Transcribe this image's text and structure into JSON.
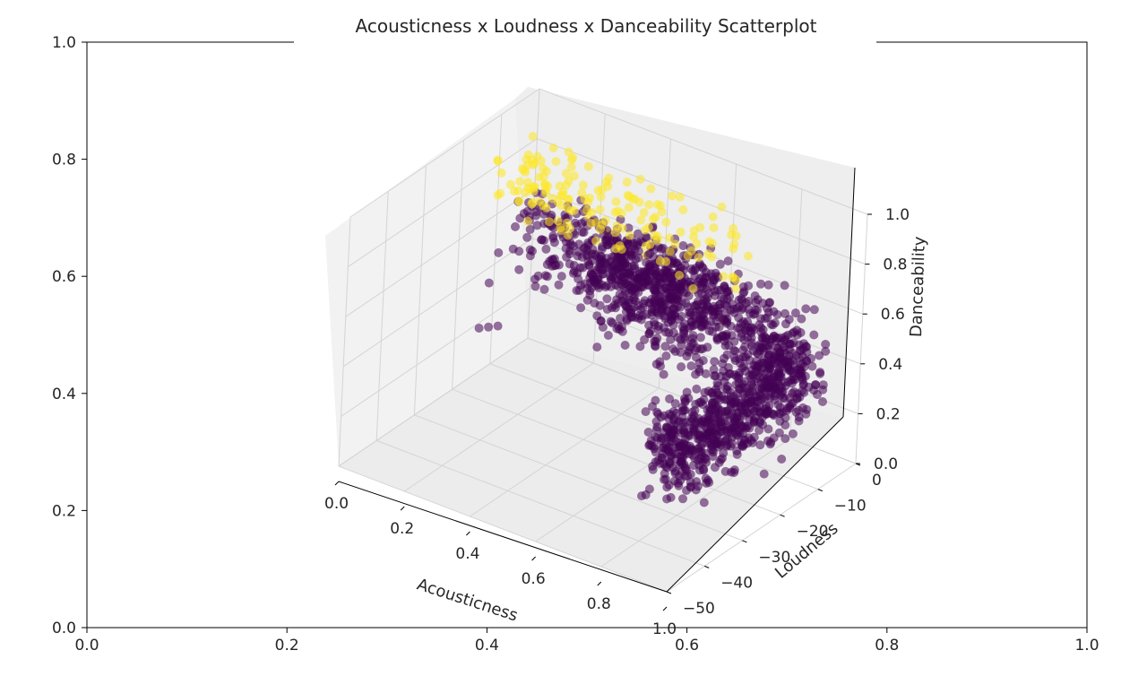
{
  "chart_data": {
    "type": "scatter",
    "title": "Acousticness x Loudness x Danceability Scatterplot",
    "projection": "3d",
    "colormap": "viridis",
    "colors": {
      "low": "#440154",
      "high": "#fde725",
      "pane": "#f2f2f2",
      "grid": "#d9d9d9",
      "axis": "#000000",
      "text": "#262626"
    },
    "background_axes": {
      "xlim": [
        0.0,
        1.0
      ],
      "ylim": [
        0.0,
        1.0
      ],
      "xticks": [
        "0.0",
        "0.2",
        "0.4",
        "0.6",
        "0.8",
        "1.0"
      ],
      "yticks": [
        "0.0",
        "0.2",
        "0.4",
        "0.6",
        "0.8",
        "1.0"
      ]
    },
    "xlabel": "Acousticness",
    "ylabel": "Loudness",
    "zlabel": "Danceability",
    "xlim": [
      0.0,
      1.0
    ],
    "ylim": [
      -50,
      0
    ],
    "zlim": [
      0.0,
      1.0
    ],
    "xticks": [
      "0.0",
      "0.2",
      "0.4",
      "0.6",
      "0.8",
      "1.0"
    ],
    "yticks": [
      "0",
      "−10",
      "−20",
      "−30",
      "−40",
      "−50"
    ],
    "zticks": [
      "0.0",
      "0.2",
      "0.4",
      "0.6",
      "0.8",
      "1.0"
    ],
    "point_sample": [
      [
        0.01,
        -4,
        0.72,
        1
      ],
      [
        0.02,
        -6,
        0.7,
        1
      ],
      [
        0.03,
        -5,
        0.76,
        1
      ],
      [
        0.05,
        -7,
        0.68,
        1
      ],
      [
        0.04,
        -8,
        0.65,
        0
      ],
      [
        0.06,
        -6,
        0.62,
        0
      ],
      [
        0.08,
        -5,
        0.74,
        1
      ],
      [
        0.1,
        -7,
        0.7,
        0
      ],
      [
        0.12,
        -6,
        0.66,
        0
      ],
      [
        0.15,
        -8,
        0.6,
        0
      ],
      [
        0.18,
        -7,
        0.72,
        1
      ],
      [
        0.2,
        -9,
        0.58,
        0
      ],
      [
        0.22,
        -6,
        0.64,
        0
      ],
      [
        0.25,
        -8,
        0.7,
        1
      ],
      [
        0.28,
        -10,
        0.55,
        0
      ],
      [
        0.3,
        -7,
        0.62,
        0
      ],
      [
        0.32,
        -9,
        0.68,
        1
      ],
      [
        0.35,
        -11,
        0.5,
        0
      ],
      [
        0.4,
        -8,
        0.6,
        0
      ],
      [
        0.45,
        -10,
        0.66,
        1
      ],
      [
        0.5,
        -12,
        0.48,
        0
      ],
      [
        0.55,
        -9,
        0.58,
        0
      ],
      [
        0.6,
        -11,
        0.64,
        0
      ],
      [
        0.65,
        -14,
        0.45,
        0
      ],
      [
        0.7,
        -12,
        0.56,
        0
      ],
      [
        0.75,
        -15,
        0.6,
        1
      ],
      [
        0.8,
        -16,
        0.42,
        0
      ],
      [
        0.85,
        -18,
        0.5,
        0
      ],
      [
        0.9,
        -20,
        0.55,
        0
      ],
      [
        0.93,
        -22,
        0.4,
        0
      ],
      [
        0.95,
        -25,
        0.48,
        0
      ],
      [
        0.97,
        -28,
        0.35,
        0
      ],
      [
        0.98,
        -30,
        0.45,
        0
      ],
      [
        0.99,
        -33,
        0.3,
        0
      ],
      [
        0.99,
        -36,
        0.38,
        0
      ],
      [
        0.99,
        -40,
        0.25,
        0
      ],
      [
        0.98,
        -20,
        0.62,
        0
      ],
      [
        0.99,
        -15,
        0.58,
        0
      ],
      [
        0.97,
        -12,
        0.52,
        0
      ],
      [
        0.99,
        -24,
        0.2,
        0
      ],
      [
        0.1,
        -20,
        0.3,
        0
      ],
      [
        0.05,
        -18,
        0.25,
        0
      ],
      [
        0.15,
        -22,
        0.35,
        0
      ],
      [
        0.02,
        -3,
        0.85,
        1
      ],
      [
        0.01,
        -10,
        0.45,
        0
      ],
      [
        0.03,
        -14,
        0.38,
        0
      ],
      [
        0.96,
        -35,
        0.6,
        0
      ],
      [
        0.99,
        -45,
        0.35,
        0
      ]
    ]
  }
}
